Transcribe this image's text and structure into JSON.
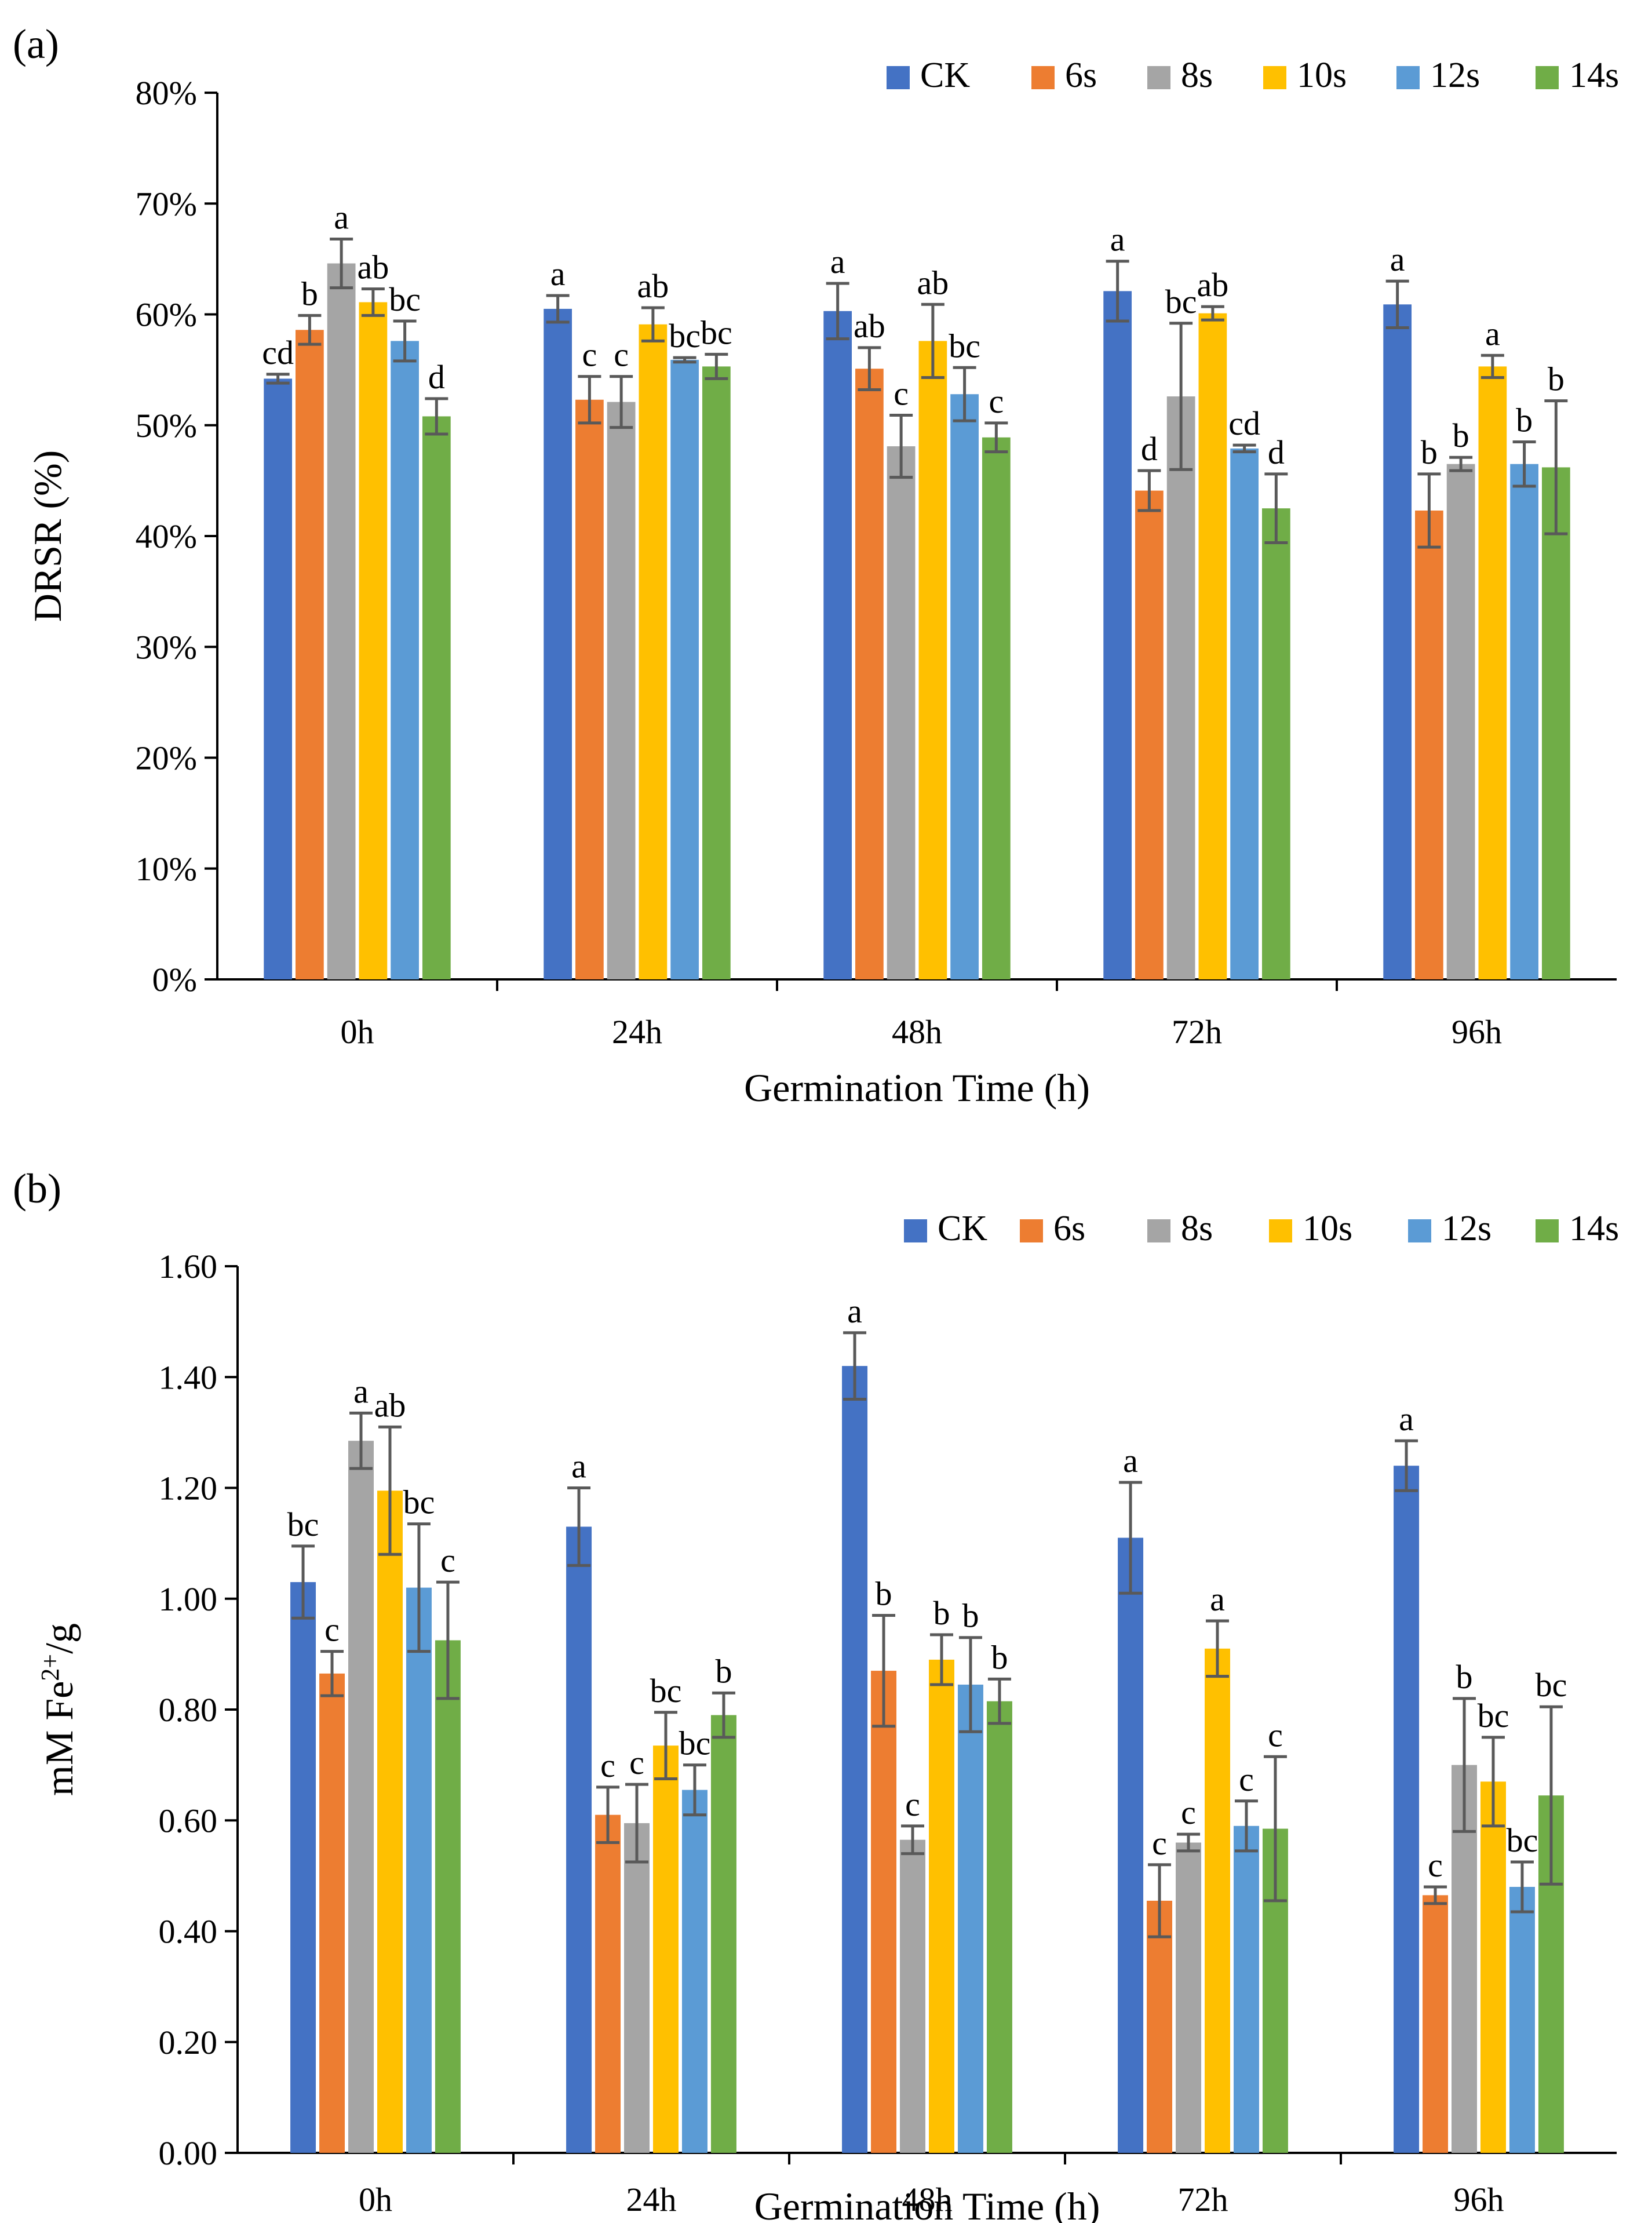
{
  "chart_data": [
    {
      "type": "bar",
      "panel_label": "(a)",
      "title": "",
      "xlabel": "Germination Time (h)",
      "ylabel": "DRSR (%)",
      "ylim": [
        0,
        80
      ],
      "yticks": [
        0,
        10,
        20,
        30,
        40,
        50,
        60,
        70,
        80
      ],
      "ytick_labels": [
        "0%",
        "10%",
        "20%",
        "30%",
        "40%",
        "50%",
        "60%",
        "70%",
        "80%"
      ],
      "grid": false,
      "legend_position": "top-right",
      "categories": [
        "0h",
        "24h",
        "48h",
        "72h",
        "96h"
      ],
      "series": [
        {
          "name": "CK",
          "color": "#4472C4",
          "values": [
            54.2,
            60.5,
            60.3,
            62.1,
            60.9
          ],
          "errors": [
            0.4,
            1.2,
            2.5,
            2.7,
            2.1
          ],
          "labels": [
            "cd",
            "a",
            "a",
            "a",
            "a"
          ]
        },
        {
          "name": "6s",
          "color": "#ED7D31",
          "values": [
            58.6,
            52.3,
            55.1,
            44.1,
            42.3
          ],
          "errors": [
            1.3,
            2.1,
            1.9,
            1.8,
            3.3
          ],
          "labels": [
            "b",
            "c",
            "ab",
            "d",
            "b"
          ]
        },
        {
          "name": "8s",
          "color": "#A5A5A5",
          "values": [
            64.6,
            52.1,
            48.1,
            52.6,
            46.5
          ],
          "errors": [
            2.2,
            2.3,
            2.8,
            6.6,
            0.6
          ],
          "labels": [
            "a",
            "c",
            "c",
            "bc",
            "b"
          ]
        },
        {
          "name": "10s",
          "color": "#FFC000",
          "values": [
            61.1,
            59.1,
            57.6,
            60.1,
            55.3
          ],
          "errors": [
            1.2,
            1.5,
            3.3,
            0.6,
            1.0
          ],
          "labels": [
            "ab",
            "ab",
            "ab",
            "ab",
            "a"
          ]
        },
        {
          "name": "12s",
          "color": "#5B9BD5",
          "values": [
            57.6,
            55.9,
            52.8,
            47.9,
            46.5
          ],
          "errors": [
            1.8,
            0.2,
            2.4,
            0.3,
            2.0
          ],
          "labels": [
            "bc",
            "bc",
            "bc",
            "cd",
            "b"
          ]
        },
        {
          "name": "14s",
          "color": "#70AD47",
          "values": [
            50.8,
            55.3,
            48.9,
            42.5,
            46.2
          ],
          "errors": [
            1.6,
            1.1,
            1.3,
            3.1,
            6.0
          ],
          "labels": [
            "d",
            "bc",
            "c",
            "d",
            "b"
          ]
        }
      ]
    },
    {
      "type": "bar",
      "panel_label": "(b)",
      "title": "",
      "xlabel": "Germination Time (h)",
      "ylabel_prefix": "mM Fe",
      "ylabel_sup": "2+",
      "ylabel_suffix": "/g",
      "ylim": [
        0,
        1.6
      ],
      "yticks": [
        0,
        0.2,
        0.4,
        0.6,
        0.8,
        1.0,
        1.2,
        1.4,
        1.6
      ],
      "ytick_labels": [
        "0.00",
        "0.20",
        "0.40",
        "0.60",
        "0.80",
        "1.00",
        "1.20",
        "1.40",
        "1.60"
      ],
      "grid": false,
      "legend_position": "top-right",
      "categories": [
        "0h",
        "24h",
        "48h",
        "72h",
        "96h"
      ],
      "series": [
        {
          "name": "CK",
          "color": "#4472C4",
          "values": [
            1.03,
            1.13,
            1.42,
            1.11,
            1.24
          ],
          "errors": [
            0.065,
            0.07,
            0.06,
            0.1,
            0.045
          ],
          "labels": [
            "bc",
            "a",
            "a",
            "a",
            "a"
          ]
        },
        {
          "name": "6s",
          "color": "#ED7D31",
          "values": [
            0.865,
            0.61,
            0.87,
            0.455,
            0.465
          ],
          "errors": [
            0.04,
            0.05,
            0.1,
            0.065,
            0.015
          ],
          "labels": [
            "c",
            "c",
            "b",
            "c",
            "c"
          ]
        },
        {
          "name": "8s",
          "color": "#A5A5A5",
          "values": [
            1.285,
            0.595,
            0.565,
            0.56,
            0.7
          ],
          "errors": [
            0.05,
            0.07,
            0.025,
            0.015,
            0.12
          ],
          "labels": [
            "a",
            "c",
            "c",
            "c",
            "b"
          ]
        },
        {
          "name": "10s",
          "color": "#FFC000",
          "values": [
            1.195,
            0.735,
            0.89,
            0.91,
            0.67
          ],
          "errors": [
            0.115,
            0.06,
            0.045,
            0.05,
            0.08
          ],
          "labels": [
            "ab",
            "bc",
            "b",
            "a",
            "bc"
          ]
        },
        {
          "name": "12s",
          "color": "#5B9BD5",
          "values": [
            1.02,
            0.655,
            0.845,
            0.59,
            0.48
          ],
          "errors": [
            0.115,
            0.045,
            0.085,
            0.045,
            0.045
          ],
          "labels": [
            "bc",
            "bc",
            "b",
            "c",
            "bc"
          ]
        },
        {
          "name": "14s",
          "color": "#70AD47",
          "values": [
            0.925,
            0.79,
            0.815,
            0.585,
            0.645
          ],
          "errors": [
            0.105,
            0.04,
            0.04,
            0.13,
            0.16
          ],
          "labels": [
            "c",
            "b",
            "b",
            "c",
            "bc"
          ]
        }
      ]
    }
  ]
}
